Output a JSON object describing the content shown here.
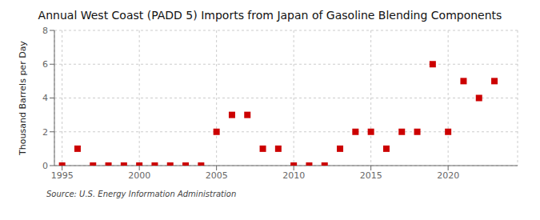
{
  "chart_data": {
    "type": "scatter",
    "title": "Annual West Coast (PADD 5) Imports from Japan of Gasoline Blending Components",
    "ylabel": "Thousand Barrels per Day",
    "source": "Source: U.S. Energy Information Administration",
    "x": [
      1995,
      1996,
      1997,
      1998,
      1999,
      2000,
      2001,
      2002,
      2003,
      2004,
      2005,
      2006,
      2007,
      2008,
      2009,
      2010,
      2011,
      2012,
      2013,
      2014,
      2015,
      2016,
      2017,
      2018,
      2019,
      2020,
      2021,
      2022,
      2023
    ],
    "values": [
      0,
      1,
      0,
      0,
      0,
      0,
      0,
      0,
      0,
      0,
      2,
      3,
      3,
      1,
      1,
      0,
      0,
      0,
      1,
      2,
      2,
      1,
      2,
      2,
      6,
      2,
      5,
      4,
      5
    ],
    "color": "#cc0000",
    "marker": "square",
    "xlim": [
      1994.5,
      2024.5
    ],
    "xticks": [
      1995,
      2000,
      2005,
      2010,
      2015,
      2020
    ],
    "ylim": [
      0,
      8
    ],
    "yticks": [
      0,
      2,
      4,
      6,
      8
    ],
    "grid": true
  }
}
